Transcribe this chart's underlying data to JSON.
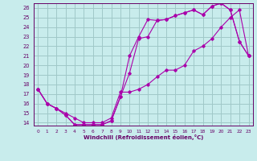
{
  "xlabel": "Windchill (Refroidissement éolien,°C)",
  "bg_color": "#c8ecec",
  "grid_color": "#a0c8c8",
  "line_color": "#aa00aa",
  "line1_x": [
    0,
    1,
    2,
    3,
    4,
    5,
    6,
    7,
    8,
    9,
    10,
    11,
    12,
    13,
    14,
    15,
    16,
    17,
    18,
    19,
    20,
    21,
    22,
    23
  ],
  "line1_y": [
    17.5,
    16.0,
    15.5,
    14.8,
    13.8,
    13.8,
    13.8,
    13.8,
    14.2,
    16.7,
    21.0,
    23.0,
    24.8,
    24.7,
    24.8,
    25.2,
    25.5,
    25.8,
    25.3,
    26.2,
    26.5,
    25.8,
    22.5,
    21.0
  ],
  "line2_x": [
    0,
    1,
    2,
    3,
    4,
    5,
    6,
    7,
    8,
    9,
    10,
    11,
    12,
    13,
    14,
    15,
    16,
    17,
    18,
    19,
    20,
    21,
    22,
    23
  ],
  "line2_y": [
    17.5,
    16.0,
    15.5,
    14.8,
    13.8,
    13.8,
    13.8,
    13.8,
    14.2,
    16.7,
    19.2,
    22.8,
    23.0,
    24.7,
    24.8,
    25.2,
    25.5,
    25.8,
    25.3,
    26.2,
    26.5,
    25.8,
    22.5,
    21.0
  ],
  "line3_x": [
    0,
    1,
    2,
    3,
    4,
    5,
    6,
    7,
    8,
    9,
    10,
    11,
    12,
    13,
    14,
    15,
    16,
    17,
    18,
    19,
    20,
    21,
    22,
    23
  ],
  "line3_y": [
    17.5,
    16.0,
    15.5,
    15.0,
    14.5,
    14.0,
    14.0,
    14.0,
    14.5,
    17.2,
    17.2,
    17.5,
    18.0,
    18.8,
    19.5,
    19.5,
    20.0,
    21.5,
    22.0,
    22.8,
    24.0,
    25.0,
    25.8,
    21.0
  ],
  "xlim": [
    -0.5,
    23.5
  ],
  "ylim": [
    13.7,
    26.5
  ],
  "yticks": [
    14,
    15,
    16,
    17,
    18,
    19,
    20,
    21,
    22,
    23,
    24,
    25,
    26
  ],
  "xticks": [
    0,
    1,
    2,
    3,
    4,
    5,
    6,
    7,
    8,
    9,
    10,
    11,
    12,
    13,
    14,
    15,
    16,
    17,
    18,
    19,
    20,
    21,
    22,
    23
  ]
}
